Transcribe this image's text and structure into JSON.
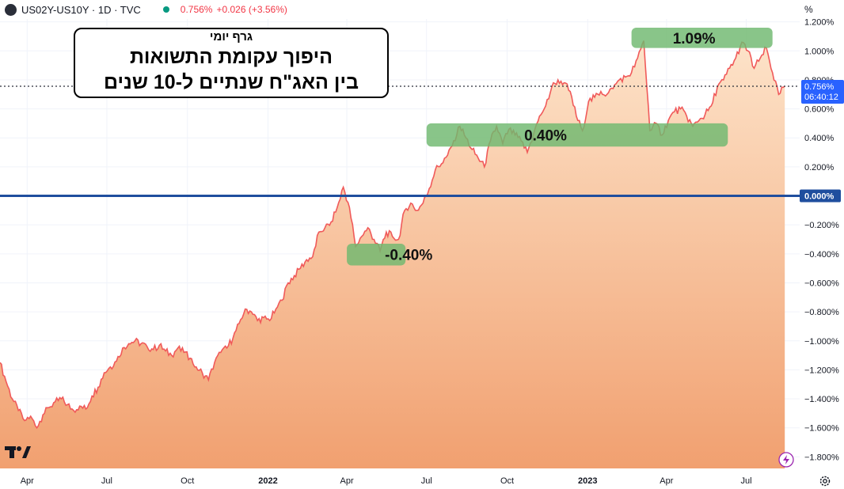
{
  "header": {
    "symbol": "US02Y-US10Y · 1D · TVC",
    "price": "0.756%",
    "change": "+0.026 (+3.56%)",
    "unit": "%"
  },
  "title_box": {
    "subtitle": "גרף יומי",
    "line1": "היפוך עקומת התשואות",
    "line2": "בין האג\"ח שנתיים ל-10 שנים"
  },
  "price_tag": {
    "value": "0.756%",
    "countdown": "06:40:12"
  },
  "colors": {
    "line": "#f05a5a",
    "zero_line": "#1f4e9e",
    "zone": "#6fb86f",
    "fill_top": "#fde3c9",
    "fill_bottom": "#f1a070",
    "price_tag": "#2962ff"
  },
  "chart_data": {
    "type": "area",
    "title": "",
    "xlabel": "",
    "ylabel": "",
    "unit": "%",
    "x_range": [
      "2021-03-01",
      "2023-08-31"
    ],
    "ylim": [
      -1.88,
      1.22
    ],
    "x_ticks": [
      {
        "date": "2021-04-01",
        "label": "Apr"
      },
      {
        "date": "2021-07-01",
        "label": "Jul"
      },
      {
        "date": "2021-10-01",
        "label": "Oct"
      },
      {
        "date": "2022-01-01",
        "label": "2022"
      },
      {
        "date": "2022-04-01",
        "label": "Apr"
      },
      {
        "date": "2022-07-01",
        "label": "Jul"
      },
      {
        "date": "2022-10-01",
        "label": "Oct"
      },
      {
        "date": "2023-01-01",
        "label": "2023"
      },
      {
        "date": "2023-04-01",
        "label": "Apr"
      },
      {
        "date": "2023-07-01",
        "label": "Jul"
      }
    ],
    "y_ticks": [
      {
        "value": 1.2,
        "label": "1.200%"
      },
      {
        "value": 1.0,
        "label": "1.000%"
      },
      {
        "value": 0.8,
        "label": "0.800%"
      },
      {
        "value": 0.6,
        "label": "0.600%"
      },
      {
        "value": 0.4,
        "label": "0.400%"
      },
      {
        "value": 0.2,
        "label": "0.200%"
      },
      {
        "value": -0.2,
        "label": "−0.200%"
      },
      {
        "value": -0.4,
        "label": "−0.400%"
      },
      {
        "value": -0.6,
        "label": "−0.600%"
      },
      {
        "value": -0.8,
        "label": "−0.800%"
      },
      {
        "value": -1.0,
        "label": "−1.000%"
      },
      {
        "value": -1.2,
        "label": "−1.200%"
      },
      {
        "value": -1.4,
        "label": "−1.400%"
      },
      {
        "value": -1.6,
        "label": "−1.600%"
      },
      {
        "value": -1.8,
        "label": "−1.800%"
      }
    ],
    "zero_label": "0.000%",
    "last_value": 0.756,
    "series": [
      {
        "name": "US02Y-US10Y",
        "points": [
          [
            "2021-03-01",
            -1.15
          ],
          [
            "2021-03-08",
            -1.28
          ],
          [
            "2021-03-15",
            -1.4
          ],
          [
            "2021-03-22",
            -1.48
          ],
          [
            "2021-03-29",
            -1.55
          ],
          [
            "2021-04-05",
            -1.52
          ],
          [
            "2021-04-12",
            -1.6
          ],
          [
            "2021-04-19",
            -1.51
          ],
          [
            "2021-04-26",
            -1.46
          ],
          [
            "2021-05-03",
            -1.42
          ],
          [
            "2021-05-10",
            -1.4
          ],
          [
            "2021-05-17",
            -1.44
          ],
          [
            "2021-05-24",
            -1.48
          ],
          [
            "2021-05-31",
            -1.45
          ],
          [
            "2021-06-07",
            -1.47
          ],
          [
            "2021-06-14",
            -1.38
          ],
          [
            "2021-06-21",
            -1.32
          ],
          [
            "2021-06-28",
            -1.22
          ],
          [
            "2021-07-05",
            -1.18
          ],
          [
            "2021-07-12",
            -1.14
          ],
          [
            "2021-07-19",
            -1.05
          ],
          [
            "2021-07-26",
            -1.02
          ],
          [
            "2021-08-02",
            -1.0
          ],
          [
            "2021-08-09",
            -1.02
          ],
          [
            "2021-08-16",
            -1.04
          ],
          [
            "2021-08-23",
            -1.06
          ],
          [
            "2021-08-30",
            -1.03
          ],
          [
            "2021-09-06",
            -1.07
          ],
          [
            "2021-09-13",
            -1.1
          ],
          [
            "2021-09-20",
            -1.05
          ],
          [
            "2021-09-27",
            -1.08
          ],
          [
            "2021-10-04",
            -1.12
          ],
          [
            "2021-10-11",
            -1.18
          ],
          [
            "2021-10-18",
            -1.22
          ],
          [
            "2021-10-25",
            -1.27
          ],
          [
            "2021-11-01",
            -1.15
          ],
          [
            "2021-11-08",
            -1.08
          ],
          [
            "2021-11-15",
            -1.05
          ],
          [
            "2021-11-22",
            -0.98
          ],
          [
            "2021-11-29",
            -0.88
          ],
          [
            "2021-12-06",
            -0.78
          ],
          [
            "2021-12-13",
            -0.8
          ],
          [
            "2021-12-20",
            -0.86
          ],
          [
            "2021-12-27",
            -0.84
          ],
          [
            "2022-01-03",
            -0.86
          ],
          [
            "2022-01-10",
            -0.78
          ],
          [
            "2022-01-17",
            -0.72
          ],
          [
            "2022-01-24",
            -0.6
          ],
          [
            "2022-01-31",
            -0.55
          ],
          [
            "2022-02-07",
            -0.5
          ],
          [
            "2022-02-14",
            -0.44
          ],
          [
            "2022-02-21",
            -0.42
          ],
          [
            "2022-02-28",
            -0.25
          ],
          [
            "2022-03-07",
            -0.22
          ],
          [
            "2022-03-14",
            -0.18
          ],
          [
            "2022-03-21",
            -0.08
          ],
          [
            "2022-03-28",
            0.06
          ],
          [
            "2022-04-04",
            -0.08
          ],
          [
            "2022-04-11",
            -0.35
          ],
          [
            "2022-04-18",
            -0.28
          ],
          [
            "2022-04-25",
            -0.22
          ],
          [
            "2022-05-02",
            -0.3
          ],
          [
            "2022-05-09",
            -0.38
          ],
          [
            "2022-05-16",
            -0.25
          ],
          [
            "2022-05-23",
            -0.28
          ],
          [
            "2022-05-30",
            -0.3
          ],
          [
            "2022-06-06",
            -0.1
          ],
          [
            "2022-06-13",
            -0.05
          ],
          [
            "2022-06-20",
            -0.1
          ],
          [
            "2022-06-27",
            -0.05
          ],
          [
            "2022-07-04",
            0.05
          ],
          [
            "2022-07-11",
            0.18
          ],
          [
            "2022-07-18",
            0.22
          ],
          [
            "2022-07-25",
            0.28
          ],
          [
            "2022-08-01",
            0.38
          ],
          [
            "2022-08-08",
            0.48
          ],
          [
            "2022-08-15",
            0.4
          ],
          [
            "2022-08-22",
            0.32
          ],
          [
            "2022-08-29",
            0.26
          ],
          [
            "2022-09-05",
            0.2
          ],
          [
            "2022-09-12",
            0.38
          ],
          [
            "2022-09-19",
            0.48
          ],
          [
            "2022-09-26",
            0.36
          ],
          [
            "2022-10-03",
            0.46
          ],
          [
            "2022-10-10",
            0.42
          ],
          [
            "2022-10-17",
            0.38
          ],
          [
            "2022-10-24",
            0.3
          ],
          [
            "2022-10-31",
            0.42
          ],
          [
            "2022-11-07",
            0.55
          ],
          [
            "2022-11-14",
            0.62
          ],
          [
            "2022-11-21",
            0.75
          ],
          [
            "2022-11-28",
            0.8
          ],
          [
            "2022-12-05",
            0.78
          ],
          [
            "2022-12-12",
            0.72
          ],
          [
            "2022-12-19",
            0.55
          ],
          [
            "2022-12-26",
            0.45
          ],
          [
            "2023-01-02",
            0.65
          ],
          [
            "2023-01-09",
            0.68
          ],
          [
            "2023-01-16",
            0.72
          ],
          [
            "2023-01-23",
            0.7
          ],
          [
            "2023-01-30",
            0.74
          ],
          [
            "2023-02-06",
            0.8
          ],
          [
            "2023-02-13",
            0.82
          ],
          [
            "2023-02-20",
            0.85
          ],
          [
            "2023-02-27",
            0.95
          ],
          [
            "2023-03-06",
            1.07
          ],
          [
            "2023-03-13",
            0.45
          ],
          [
            "2023-03-20",
            0.5
          ],
          [
            "2023-03-27",
            0.42
          ],
          [
            "2023-04-03",
            0.52
          ],
          [
            "2023-04-10",
            0.58
          ],
          [
            "2023-04-17",
            0.6
          ],
          [
            "2023-04-24",
            0.55
          ],
          [
            "2023-05-01",
            0.48
          ],
          [
            "2023-05-08",
            0.52
          ],
          [
            "2023-05-15",
            0.56
          ],
          [
            "2023-05-22",
            0.62
          ],
          [
            "2023-05-29",
            0.75
          ],
          [
            "2023-06-05",
            0.8
          ],
          [
            "2023-06-12",
            0.88
          ],
          [
            "2023-06-19",
            0.95
          ],
          [
            "2023-06-26",
            1.06
          ],
          [
            "2023-07-03",
            1.0
          ],
          [
            "2023-07-10",
            0.88
          ],
          [
            "2023-07-17",
            0.95
          ],
          [
            "2023-07-24",
            1.02
          ],
          [
            "2023-07-31",
            0.85
          ],
          [
            "2023-08-07",
            0.7
          ],
          [
            "2023-08-14",
            0.756
          ]
        ]
      }
    ],
    "zones": [
      {
        "label": "1.09%",
        "start": "2023-02-20",
        "end": "2023-07-31",
        "low": 1.02,
        "high": 1.16
      },
      {
        "label": "0.40%",
        "start": "2022-07-01",
        "end": "2023-06-10",
        "low": 0.34,
        "high": 0.5
      },
      {
        "label": "-0.40%",
        "start": "2022-04-01",
        "end": "2022-06-07",
        "low": -0.48,
        "high": -0.33
      }
    ]
  }
}
